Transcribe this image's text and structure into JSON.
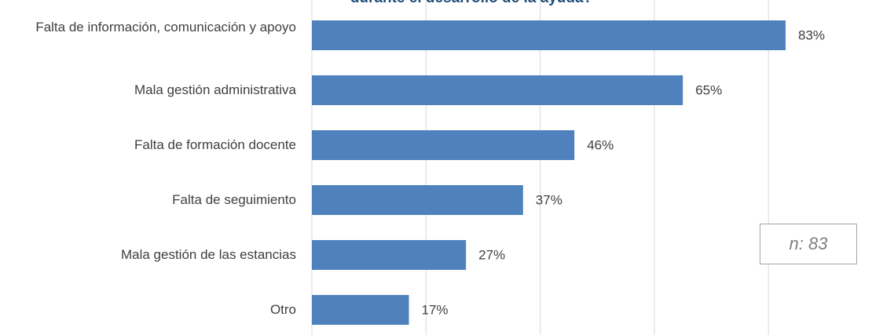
{
  "chart_data": {
    "type": "bar",
    "orientation": "horizontal",
    "title": "durante el desarrollo de la ayuda?",
    "categories": [
      "Falta de información, comunicación y apoyo",
      "Mala gestión administrativa",
      "Falta de formación docente",
      "Falta de seguimiento",
      "Mala gestión de las estancias",
      "Otro"
    ],
    "values": [
      83,
      65,
      46,
      37,
      27,
      17
    ],
    "value_labels": [
      "83%",
      "65%",
      "46%",
      "37%",
      "27%",
      "17%"
    ],
    "color": "#4f81bd",
    "xlim": [
      0,
      90
    ],
    "xticks": [
      0,
      20,
      40,
      60,
      80
    ],
    "grid": true,
    "annotation": "n: 83"
  }
}
